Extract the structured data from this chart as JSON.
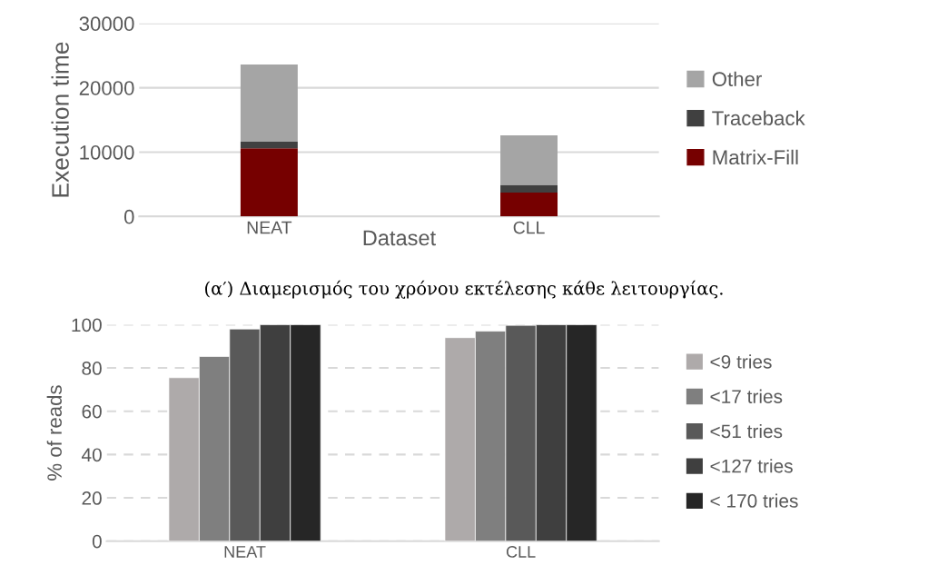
{
  "chart_data": [
    {
      "type": "bar",
      "stacked": true,
      "categories": [
        "NEAT",
        "CLL"
      ],
      "xlabel": "Dataset",
      "ylabel": "Execution time",
      "ylim": [
        0,
        30000
      ],
      "yticks": [
        0,
        10000,
        20000,
        30000
      ],
      "grid": "y",
      "legend": "right",
      "series": [
        {
          "name": "Matrix-Fill",
          "color": "#760000",
          "values": [
            10600,
            3700
          ]
        },
        {
          "name": "Traceback",
          "color": "#404040",
          "values": [
            1000,
            1200
          ]
        },
        {
          "name": "Other",
          "color": "#a5a5a5",
          "values": [
            12000,
            7700
          ]
        }
      ],
      "annotations": [
        "(α′) Διαμερισμός του χρόνου εκτέλεσης κάθε λειτουργίας."
      ]
    },
    {
      "type": "bar",
      "categories": [
        "NEAT",
        "CLL"
      ],
      "ylabel": "% of reads",
      "ylim": [
        0,
        100
      ],
      "yticks": [
        0,
        20,
        40,
        60,
        80,
        100
      ],
      "grid": "y",
      "legend": "right",
      "series": [
        {
          "name": "<9 tries",
          "color": "#aeaaaa",
          "values": [
            75.5,
            94
          ]
        },
        {
          "name": "<17 tries",
          "color": "#7f7f7f",
          "values": [
            85.3,
            97
          ]
        },
        {
          "name": "<51 tries",
          "color": "#595959",
          "values": [
            98,
            99.7
          ]
        },
        {
          "name": "<127 tries",
          "color": "#3f3f3f",
          "values": [
            100,
            100
          ]
        },
        {
          "name": "< 170 tries",
          "color": "#262626",
          "values": [
            100,
            100
          ]
        }
      ]
    }
  ]
}
